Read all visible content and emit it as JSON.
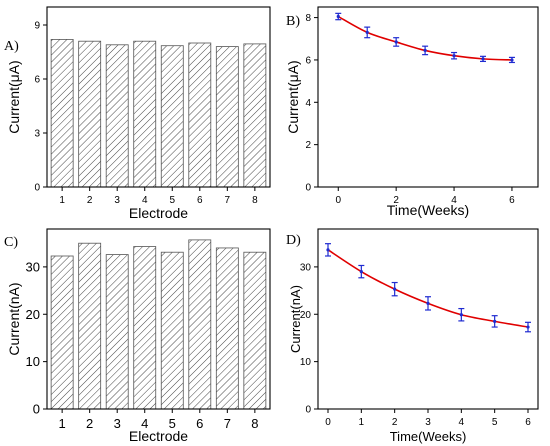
{
  "chart_data": [
    {
      "panel": "A)",
      "type": "bar",
      "xlabel": "Electrode",
      "ylabel": "Current(μA)",
      "categories": [
        "1",
        "2",
        "3",
        "4",
        "5",
        "6",
        "7",
        "8"
      ],
      "values": [
        8.2,
        8.1,
        7.9,
        8.1,
        7.85,
        8.0,
        7.8,
        7.95
      ],
      "ylim": [
        0,
        10
      ],
      "yticks": [
        0,
        3,
        6,
        9
      ],
      "pattern": "hatch"
    },
    {
      "panel": "B)",
      "type": "line",
      "xlabel": "Time(Weeks)",
      "ylabel": "Current(μA)",
      "x": [
        0,
        1,
        2,
        3,
        4,
        5,
        6
      ],
      "y": [
        8.05,
        7.3,
        6.85,
        6.45,
        6.2,
        6.05,
        6.0
      ],
      "err": [
        0.15,
        0.25,
        0.2,
        0.2,
        0.15,
        0.12,
        0.12
      ],
      "xlim": [
        -0.7,
        6.9
      ],
      "ylim": [
        0,
        8.5
      ],
      "xticks": [
        0,
        2,
        4,
        6
      ],
      "yticks": [
        0,
        2,
        4,
        6,
        8
      ],
      "line_color": "#e00000",
      "marker_color": "#1f2bd1"
    },
    {
      "panel": "C)",
      "type": "bar",
      "xlabel": "Electrode",
      "ylabel": "Current(nA)",
      "categories": [
        "1",
        "2",
        "3",
        "4",
        "5",
        "6",
        "7",
        "8"
      ],
      "values": [
        32.3,
        35.0,
        32.6,
        34.3,
        33.1,
        35.7,
        34.0,
        33.1
      ],
      "ylim": [
        0,
        38
      ],
      "yticks": [
        0,
        10,
        20,
        30
      ],
      "pattern": "hatch"
    },
    {
      "panel": "D)",
      "type": "line",
      "xlabel": "Time(Weeks)",
      "ylabel": "Current(nA)",
      "x": [
        0,
        1,
        2,
        3,
        4,
        5,
        6
      ],
      "y": [
        33.6,
        29.0,
        25.3,
        22.3,
        19.9,
        18.5,
        17.3
      ],
      "err": [
        1.3,
        1.3,
        1.4,
        1.4,
        1.3,
        1.2,
        1.0
      ],
      "xlim": [
        -0.3,
        6.3
      ],
      "ylim": [
        0,
        38
      ],
      "xticks": [
        0,
        1,
        2,
        3,
        4,
        5,
        6
      ],
      "yticks": [
        0,
        10,
        20,
        30
      ],
      "line_color": "#e00000",
      "marker_color": "#1f2bd1"
    }
  ]
}
